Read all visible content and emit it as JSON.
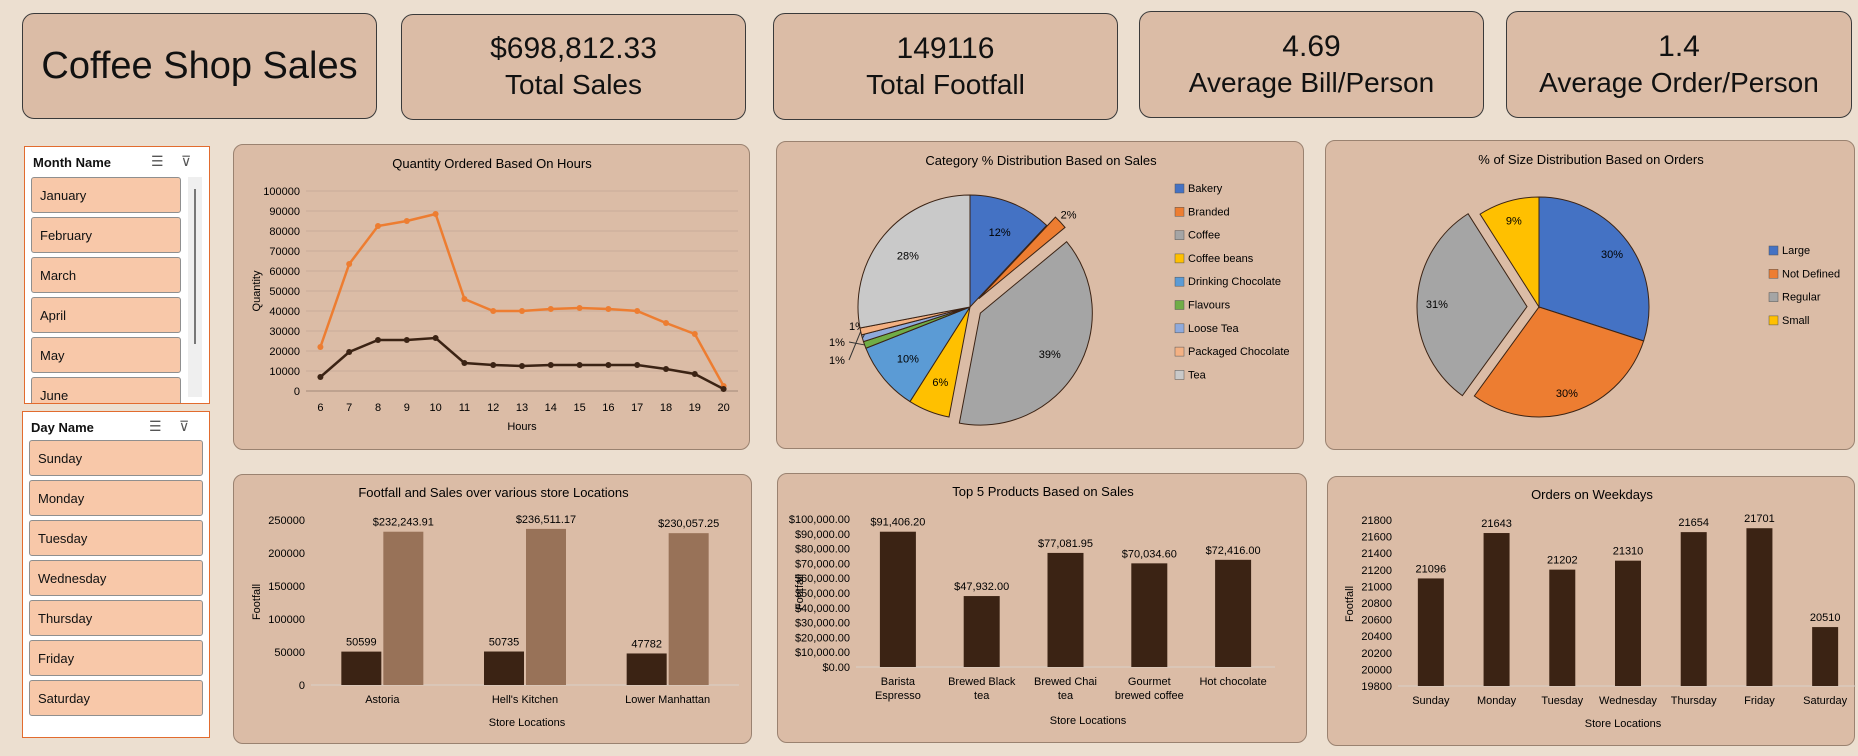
{
  "dashboard": {
    "title": "Coffee Shop Sales",
    "kpis": [
      {
        "value": "$698,812.33",
        "label": "Total Sales"
      },
      {
        "value": "149116",
        "label": "Total Footfall"
      },
      {
        "value": "4.69",
        "label": "Average Bill/Person"
      },
      {
        "value": "1.4",
        "label": "Average Order/Person"
      }
    ]
  },
  "slicers": {
    "month": {
      "header": "Month Name",
      "items": [
        "January",
        "February",
        "March",
        "April",
        "May",
        "June"
      ]
    },
    "day": {
      "header": "Day Name",
      "items": [
        "Sunday",
        "Monday",
        "Tuesday",
        "Wednesday",
        "Thursday",
        "Friday",
        "Saturday"
      ]
    }
  },
  "colors": {
    "background": "#ecdfd0",
    "card": "#dbbca6",
    "dark_brown": "#3b2314",
    "light_brown": "#987258",
    "orange": "#ed7d31",
    "slicer_item": "#f8c8a9",
    "slicer_border": "#e26b2e"
  },
  "chart_data": [
    {
      "id": "hours",
      "type": "line",
      "title": "Quantity Ordered Based On Hours",
      "xlabel": "Hours",
      "ylabel": "Quantity",
      "x": [
        6,
        7,
        8,
        9,
        10,
        11,
        12,
        13,
        14,
        15,
        16,
        17,
        18,
        19,
        20
      ],
      "ylim": [
        0,
        100000
      ],
      "yticks": [
        "0",
        "10000",
        "20000",
        "30000",
        "40000",
        "50000",
        "60000",
        "70000",
        "80000",
        "90000",
        "100000"
      ],
      "grid": true,
      "series": [
        {
          "color": "#ed7d31",
          "values": [
            22000,
            63500,
            82500,
            85000,
            88500,
            46000,
            40000,
            40000,
            41000,
            41500,
            41000,
            40000,
            34000,
            28500,
            2500
          ]
        },
        {
          "color": "#3b2314",
          "values": [
            7000,
            19500,
            25500,
            25500,
            26500,
            14000,
            13000,
            12500,
            13000,
            13000,
            13000,
            13000,
            11000,
            8500,
            1000
          ]
        }
      ]
    },
    {
      "id": "category",
      "type": "pie",
      "title": "Category % Distribution Based on Sales",
      "legend_position": "right",
      "slices": [
        {
          "label": "Bakery",
          "value": 12,
          "display": "12%",
          "color": "#4472c4"
        },
        {
          "label": "Branded",
          "value": 2,
          "display": "2%",
          "color": "#ed7d31"
        },
        {
          "label": "Coffee",
          "value": 39,
          "display": "39%",
          "color": "#a5a5a5"
        },
        {
          "label": "Coffee beans",
          "value": 6,
          "display": "6%",
          "color": "#ffc000"
        },
        {
          "label": "Drinking Chocolate",
          "value": 10,
          "display": "10%",
          "color": "#5b9bd5"
        },
        {
          "label": "Flavours",
          "value": 1,
          "display": "1%",
          "color": "#70ad47"
        },
        {
          "label": "Loose Tea",
          "value": 1,
          "display": "1%",
          "color": "#8faadc"
        },
        {
          "label": "Packaged Chocolate",
          "value": 1,
          "display": "1%",
          "color": "#f4b183"
        },
        {
          "label": "Tea",
          "value": 28,
          "display": "28%",
          "color": "#c9c9c9"
        }
      ]
    },
    {
      "id": "size",
      "type": "pie",
      "title": "% of Size Distribution Based on Orders",
      "legend_position": "right",
      "slices": [
        {
          "label": "Large",
          "value": 30,
          "display": "30%",
          "color": "#4472c4"
        },
        {
          "label": "Not Defined",
          "value": 30,
          "display": "30%",
          "color": "#ed7d31"
        },
        {
          "label": "Regular",
          "value": 31,
          "display": "31%",
          "color": "#a5a5a5"
        },
        {
          "label": "Small",
          "value": 9,
          "display": "9%",
          "color": "#ffc000"
        }
      ]
    },
    {
      "id": "locations",
      "type": "bar",
      "title": "Footfall and Sales over various store Locations",
      "xlabel": "Store Locations",
      "ylabel": "Footfall",
      "categories": [
        "Astoria",
        "Hell's Kitchen",
        "Lower Manhattan"
      ],
      "ylim": [
        0,
        250000
      ],
      "yticks": [
        "0",
        "50000",
        "100000",
        "150000",
        "200000",
        "250000"
      ],
      "series": [
        {
          "color": "#3b2314",
          "values": [
            50599,
            50735,
            47782
          ],
          "labels": [
            "50599",
            "50735",
            "47782"
          ]
        },
        {
          "color": "#987258",
          "values": [
            232243.91,
            236511.17,
            230057.25
          ],
          "labels": [
            "$232,243.91",
            "$236,511.17",
            "$230,057.25"
          ]
        }
      ]
    },
    {
      "id": "products",
      "type": "bar",
      "title": "Top 5 Products Based on Sales",
      "xlabel": "Store Locations",
      "ylabel": "Footfall",
      "categories": [
        [
          "Barista",
          "Espresso"
        ],
        [
          "Brewed Black",
          "tea"
        ],
        [
          "Brewed Chai",
          "tea"
        ],
        [
          "Gourmet",
          "brewed coffee"
        ],
        [
          "Hot chocolate"
        ]
      ],
      "ylim": [
        0,
        100000
      ],
      "yticks": [
        "$0.00",
        "$10,000.00",
        "$20,000.00",
        "$30,000.00",
        "$40,000.00",
        "$50,000.00",
        "$60,000.00",
        "$70,000.00",
        "$80,000.00",
        "$90,000.00",
        "$100,000.00"
      ],
      "series": [
        {
          "color": "#3b2314",
          "values": [
            91406.2,
            47932.0,
            77081.95,
            70034.6,
            72416.0
          ],
          "labels": [
            "$91,406.20",
            "$47,932.00",
            "$77,081.95",
            "$70,034.60",
            "$72,416.00"
          ]
        }
      ]
    },
    {
      "id": "weekdays",
      "type": "bar",
      "title": "Orders on Weekdays",
      "xlabel": "Store Locations",
      "ylabel": "Footfall",
      "categories": [
        "Sunday",
        "Monday",
        "Tuesday",
        "Wednesday",
        "Thursday",
        "Friday",
        "Saturday"
      ],
      "ylim": [
        19800,
        21800
      ],
      "yticks": [
        "19800",
        "20000",
        "20200",
        "20400",
        "20600",
        "20800",
        "21000",
        "21200",
        "21400",
        "21600",
        "21800"
      ],
      "series": [
        {
          "color": "#3b2314",
          "values": [
            21096,
            21643,
            21202,
            21310,
            21654,
            21701,
            20510
          ],
          "labels": [
            "21096",
            "21643",
            "21202",
            "21310",
            "21654",
            "21701",
            "20510"
          ]
        }
      ]
    }
  ]
}
